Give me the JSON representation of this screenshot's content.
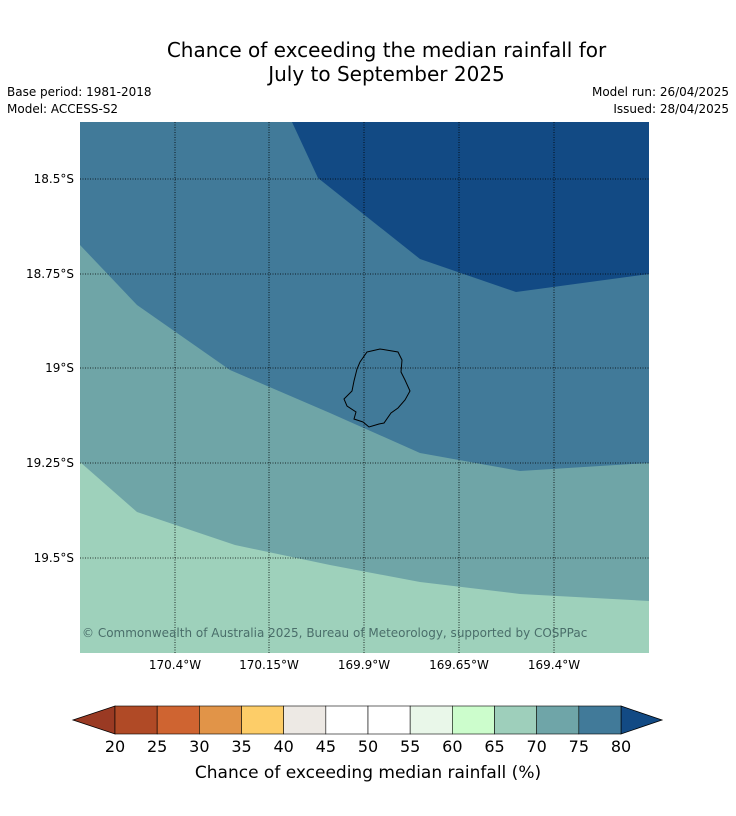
{
  "title": {
    "line1": "Chance of exceeding the median rainfall for",
    "line2": "July to September 2025"
  },
  "meta": {
    "base_period": "Base period: 1981-2018",
    "model": "Model: ACCESS-S2",
    "model_run": "Model run: 26/04/2025",
    "issued": "Issued: 28/04/2025"
  },
  "map": {
    "lat_ticks": [
      "18.5°S",
      "18.75°S",
      "19°S",
      "19.25°S",
      "19.5°S"
    ],
    "lon_ticks": [
      "170.4°W",
      "170.15°W",
      "169.9°W",
      "169.65°W",
      "169.4°W"
    ],
    "copyright": "© Commonwealth of Australia 2025, Bureau of Meteorology, supported by COSPPac",
    "zone_colors": {
      "above_80": "#124a84",
      "75_80": "#417a99",
      "70_75": "#6fa5a7",
      "65_70": "#9ed1bb"
    }
  },
  "colorbar": {
    "labels": [
      "20",
      "25",
      "30",
      "35",
      "40",
      "45",
      "50",
      "55",
      "60",
      "65",
      "70",
      "75",
      "80"
    ],
    "colors": [
      "#b04a26",
      "#cf6431",
      "#e19448",
      "#fdcd68",
      "#ede9e4",
      "#ffffff",
      "#ffffff",
      "#e9f7e9",
      "#ccfdcc",
      "#9ecfbb",
      "#6fa5a8",
      "#417a99"
    ],
    "low_color": "#9a3a23",
    "high_color": "#124a84",
    "title": "Chance of exceeding median rainfall (%)"
  }
}
